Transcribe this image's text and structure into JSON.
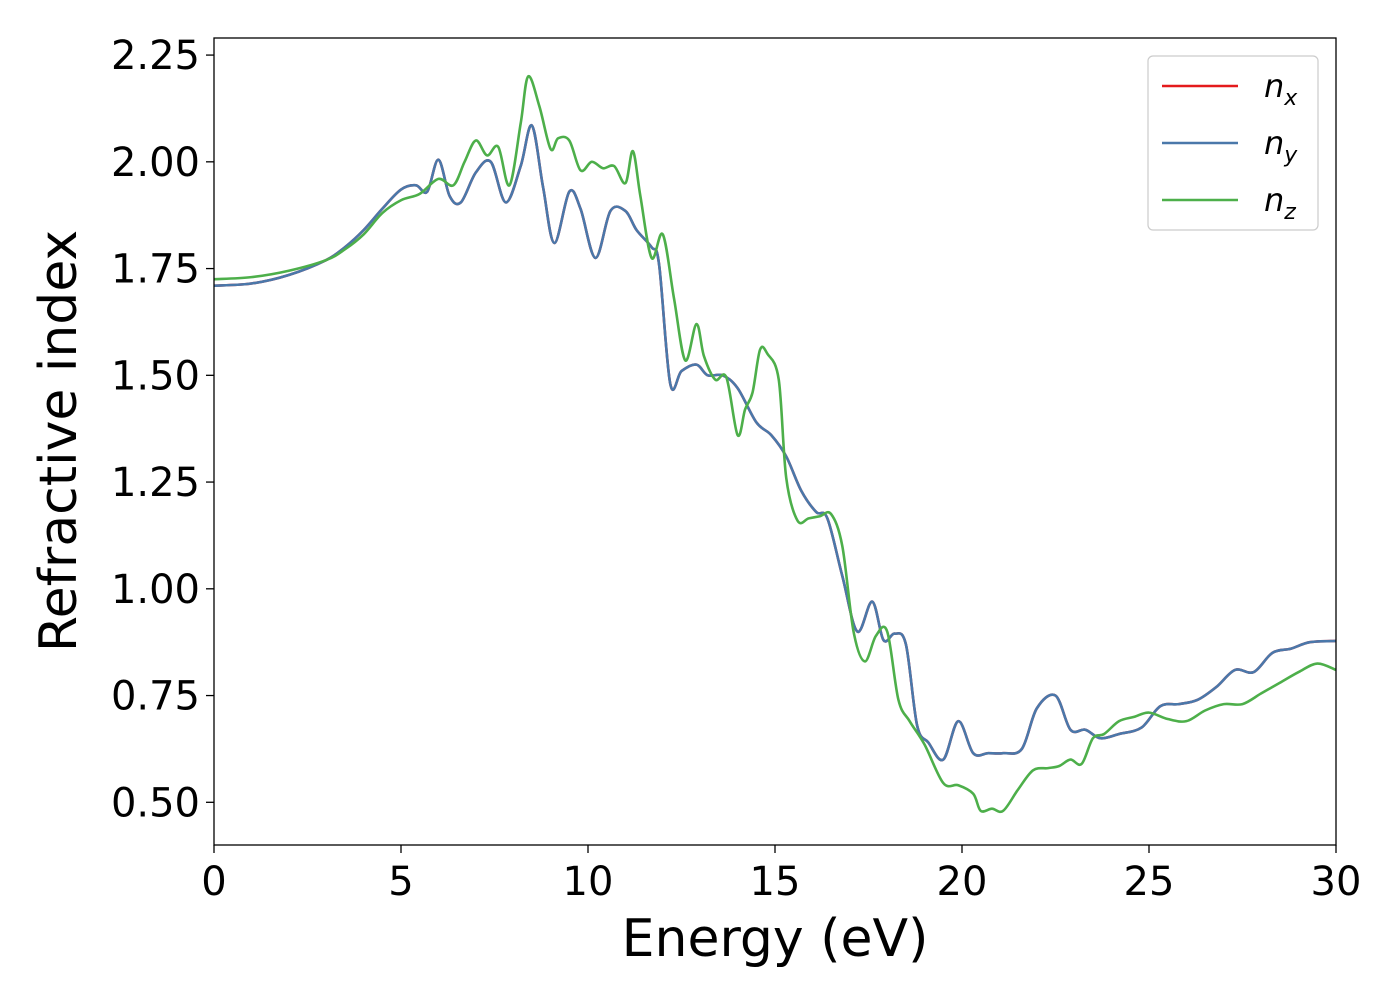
{
  "chart_data": {
    "type": "line",
    "xlabel": "Energy (eV)",
    "ylabel": "Refractive index",
    "xlim": [
      0,
      30
    ],
    "ylim": [
      0.4,
      2.29
    ],
    "xticks": [
      0,
      5,
      10,
      15,
      20,
      25,
      30
    ],
    "xtick_labels": [
      "0",
      "5",
      "10",
      "15",
      "20",
      "25",
      "30"
    ],
    "yticks": [
      0.5,
      0.75,
      1.0,
      1.25,
      1.5,
      1.75,
      2.0,
      2.25
    ],
    "ytick_labels": [
      "0.50",
      "0.75",
      "1.00",
      "1.25",
      "1.50",
      "1.75",
      "2.00",
      "2.25"
    ],
    "grid": false,
    "legend_position": "top-right",
    "series": [
      {
        "name": "n",
        "subscript": "x",
        "color": "#e41a1c",
        "x": [
          0,
          1,
          2,
          3,
          3.5,
          4,
          4.5,
          5,
          5.4,
          5.7,
          6.0,
          6.3,
          6.6,
          7.0,
          7.4,
          7.8,
          8.2,
          8.5,
          8.8,
          9.1,
          9.5,
          9.8,
          10.2,
          10.6,
          11.0,
          11.3,
          11.7,
          11.9,
          12.2,
          12.5,
          12.9,
          13.2,
          13.6,
          14.0,
          14.5,
          14.9,
          15.3,
          15.7,
          16.1,
          16.4,
          16.8,
          17.2,
          17.6,
          17.9,
          18.2,
          18.5,
          18.8,
          19.1,
          19.5,
          19.9,
          20.3,
          20.7,
          21.1,
          21.6,
          22.0,
          22.5,
          22.9,
          23.3,
          23.7,
          24.2,
          24.8,
          25.3,
          25.8,
          26.3,
          26.8,
          27.3,
          27.8,
          28.3,
          28.8,
          29.3,
          30.0
        ],
        "values": [
          1.71,
          1.715,
          1.735,
          1.77,
          1.8,
          1.84,
          1.89,
          1.935,
          1.945,
          1.93,
          2.005,
          1.92,
          1.905,
          1.975,
          2.0,
          1.905,
          1.99,
          2.085,
          1.94,
          1.81,
          1.93,
          1.89,
          1.775,
          1.885,
          1.885,
          1.84,
          1.8,
          1.76,
          1.48,
          1.51,
          1.525,
          1.5,
          1.5,
          1.47,
          1.39,
          1.36,
          1.31,
          1.23,
          1.18,
          1.165,
          1.03,
          0.9,
          0.97,
          0.88,
          0.895,
          0.87,
          0.68,
          0.64,
          0.6,
          0.69,
          0.615,
          0.615,
          0.615,
          0.625,
          0.72,
          0.75,
          0.67,
          0.67,
          0.65,
          0.66,
          0.675,
          0.725,
          0.73,
          0.74,
          0.77,
          0.81,
          0.805,
          0.85,
          0.86,
          0.875,
          0.878
        ]
      },
      {
        "name": "n",
        "subscript": "y",
        "color": "#4a78aa",
        "x": [
          0,
          1,
          2,
          3,
          3.5,
          4,
          4.5,
          5,
          5.4,
          5.7,
          6.0,
          6.3,
          6.6,
          7.0,
          7.4,
          7.8,
          8.2,
          8.5,
          8.8,
          9.1,
          9.5,
          9.8,
          10.2,
          10.6,
          11.0,
          11.3,
          11.7,
          11.9,
          12.2,
          12.5,
          12.9,
          13.2,
          13.6,
          14.0,
          14.5,
          14.9,
          15.3,
          15.7,
          16.1,
          16.4,
          16.8,
          17.2,
          17.6,
          17.9,
          18.2,
          18.5,
          18.8,
          19.1,
          19.5,
          19.9,
          20.3,
          20.7,
          21.1,
          21.6,
          22.0,
          22.5,
          22.9,
          23.3,
          23.7,
          24.2,
          24.8,
          25.3,
          25.8,
          26.3,
          26.8,
          27.3,
          27.8,
          28.3,
          28.8,
          29.3,
          30.0
        ],
        "values": [
          1.71,
          1.715,
          1.735,
          1.77,
          1.8,
          1.84,
          1.89,
          1.935,
          1.945,
          1.93,
          2.005,
          1.92,
          1.905,
          1.975,
          2.0,
          1.905,
          1.99,
          2.085,
          1.94,
          1.81,
          1.93,
          1.89,
          1.775,
          1.885,
          1.885,
          1.84,
          1.8,
          1.76,
          1.48,
          1.51,
          1.525,
          1.5,
          1.5,
          1.47,
          1.39,
          1.36,
          1.31,
          1.23,
          1.18,
          1.165,
          1.03,
          0.9,
          0.97,
          0.88,
          0.895,
          0.87,
          0.68,
          0.64,
          0.6,
          0.69,
          0.615,
          0.615,
          0.615,
          0.625,
          0.72,
          0.75,
          0.67,
          0.67,
          0.65,
          0.66,
          0.675,
          0.725,
          0.73,
          0.74,
          0.77,
          0.81,
          0.805,
          0.85,
          0.86,
          0.875,
          0.878
        ]
      },
      {
        "name": "n",
        "subscript": "z",
        "color": "#4daf4a",
        "x": [
          0,
          1,
          2,
          3,
          3.5,
          4,
          4.5,
          5,
          5.5,
          6.0,
          6.4,
          6.7,
          7.0,
          7.3,
          7.6,
          7.9,
          8.2,
          8.4,
          8.7,
          9.0,
          9.2,
          9.5,
          9.8,
          10.1,
          10.4,
          10.7,
          11.0,
          11.2,
          11.4,
          11.7,
          12.0,
          12.3,
          12.6,
          12.9,
          13.1,
          13.4,
          13.7,
          14.0,
          14.2,
          14.4,
          14.6,
          14.8,
          15.1,
          15.3,
          15.6,
          15.9,
          16.2,
          16.5,
          16.8,
          17.1,
          17.4,
          17.7,
          18.0,
          18.3,
          18.6,
          19.0,
          19.5,
          19.9,
          20.3,
          20.5,
          20.8,
          21.1,
          21.5,
          21.9,
          22.3,
          22.6,
          22.9,
          23.2,
          23.5,
          23.8,
          24.2,
          24.6,
          25.0,
          25.5,
          26.0,
          26.5,
          27.0,
          27.5,
          28.0,
          28.5,
          29.0,
          29.5,
          30.0
        ],
        "values": [
          1.725,
          1.73,
          1.745,
          1.77,
          1.795,
          1.83,
          1.88,
          1.91,
          1.925,
          1.96,
          1.945,
          2.0,
          2.05,
          2.015,
          2.035,
          1.945,
          2.09,
          2.2,
          2.13,
          2.03,
          2.055,
          2.05,
          1.98,
          2.0,
          1.985,
          1.99,
          1.95,
          2.025,
          1.92,
          1.775,
          1.83,
          1.68,
          1.535,
          1.62,
          1.545,
          1.49,
          1.495,
          1.36,
          1.42,
          1.46,
          1.56,
          1.55,
          1.49,
          1.26,
          1.16,
          1.165,
          1.17,
          1.175,
          1.1,
          0.9,
          0.83,
          0.89,
          0.9,
          0.74,
          0.69,
          0.635,
          0.545,
          0.54,
          0.52,
          0.48,
          0.485,
          0.48,
          0.53,
          0.575,
          0.58,
          0.585,
          0.6,
          0.59,
          0.65,
          0.66,
          0.69,
          0.7,
          0.71,
          0.695,
          0.69,
          0.715,
          0.73,
          0.73,
          0.755,
          0.78,
          0.805,
          0.825,
          0.81
        ]
      }
    ]
  }
}
